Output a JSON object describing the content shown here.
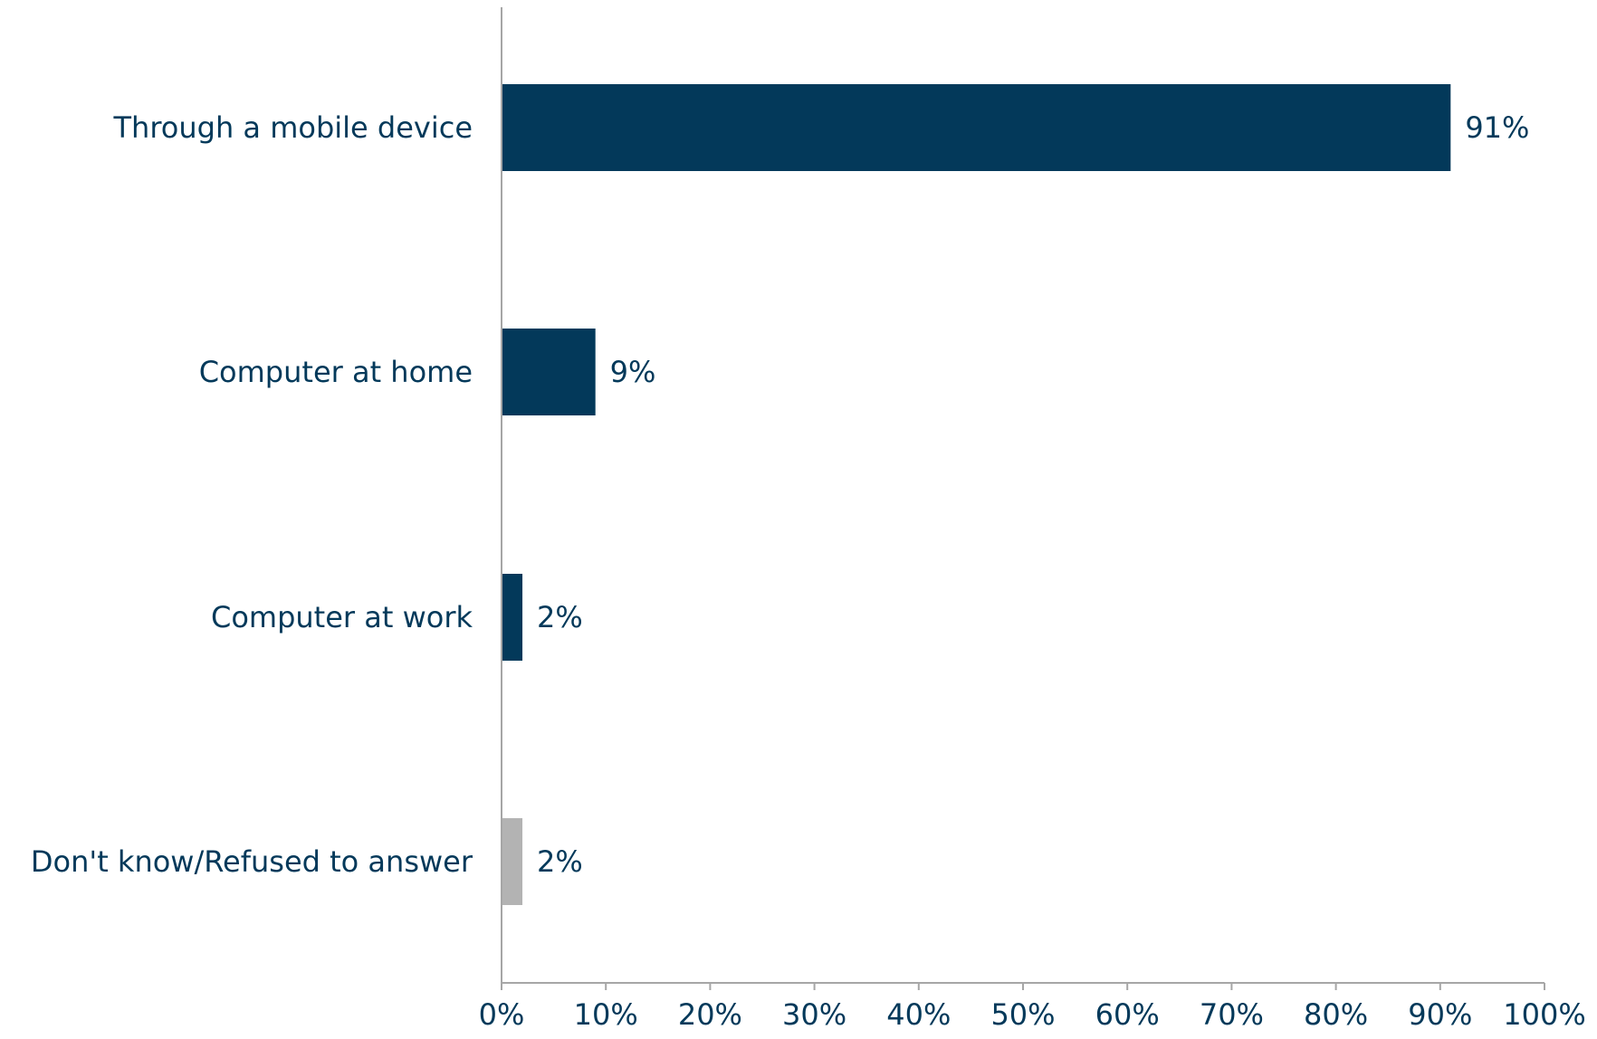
{
  "chart_data": {
    "type": "bar",
    "orientation": "horizontal",
    "categories": [
      "Through a mobile device",
      "Computer at home",
      "Computer at work",
      "Don't know/Refused to answer"
    ],
    "values": [
      91,
      9,
      2,
      2
    ],
    "data_labels": [
      "91%",
      "9%",
      "2%",
      "2%"
    ],
    "bar_colors": [
      "#03395a",
      "#03395a",
      "#03395a",
      "#b3b3b3"
    ],
    "xlim": [
      0,
      100
    ],
    "x_ticks": [
      0,
      10,
      20,
      30,
      40,
      50,
      60,
      70,
      80,
      90,
      100
    ],
    "x_tick_labels": [
      "0%",
      "10%",
      "20%",
      "30%",
      "40%",
      "50%",
      "60%",
      "70%",
      "80%",
      "90%",
      "100%"
    ],
    "title": "",
    "xlabel": "",
    "ylabel": "",
    "grid": false,
    "legend": "none",
    "text_color": "#03395a",
    "axis_color": "#a6a6a6"
  }
}
